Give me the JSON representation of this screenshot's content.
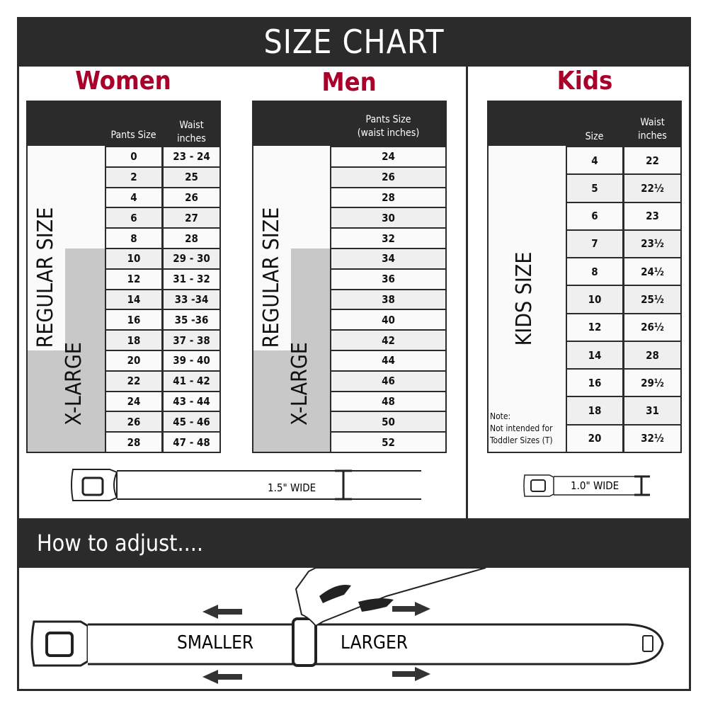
{
  "title": "SIZE CHART",
  "colors": {
    "accent": "#a8002a",
    "dark": "#2b2b2b",
    "xlarge_fill": "#c8c8c8",
    "row_alt": "#efefef"
  },
  "women": {
    "heading": "Women",
    "col_size": "Pants Size",
    "col_waist_1": "Waist",
    "col_waist_2": "inches",
    "regular_label": "REGULAR SIZE",
    "xlarge_label": "X-LARGE",
    "rows": [
      [
        "0",
        "23 - 24"
      ],
      [
        "2",
        "25"
      ],
      [
        "4",
        "26"
      ],
      [
        "6",
        "27"
      ],
      [
        "8",
        "28"
      ],
      [
        "10",
        "29 - 30"
      ],
      [
        "12",
        "31 - 32"
      ],
      [
        "14",
        "33 -34"
      ],
      [
        "16",
        "35 -36"
      ],
      [
        "18",
        "37 - 38"
      ],
      [
        "20",
        "39 - 40"
      ],
      [
        "22",
        "41 - 42"
      ],
      [
        "24",
        "43 - 44"
      ],
      [
        "26",
        "45 - 46"
      ],
      [
        "28",
        "47 - 48"
      ]
    ],
    "belt_width": "1.5\" WIDE"
  },
  "men": {
    "heading": "Men",
    "col_1": "Pants Size",
    "col_2": "(waist inches)",
    "regular_label": "REGULAR SIZE",
    "xlarge_label": "X-LARGE",
    "rows": [
      "24",
      "26",
      "28",
      "30",
      "32",
      "34",
      "36",
      "38",
      "40",
      "42",
      "44",
      "46",
      "48",
      "50",
      "52"
    ]
  },
  "kids": {
    "heading": "Kids",
    "col_size": "Size",
    "col_waist_1": "Waist",
    "col_waist_2": "inches",
    "label": "KIDS SIZE",
    "note_1": "Note:",
    "note_2": "Not intended for",
    "note_3": "Toddler Sizes (T)",
    "rows": [
      [
        "4",
        "22"
      ],
      [
        "5",
        "22½"
      ],
      [
        "6",
        "23"
      ],
      [
        "7",
        "23½"
      ],
      [
        "8",
        "24½"
      ],
      [
        "10",
        "25½"
      ],
      [
        "12",
        "26½"
      ],
      [
        "14",
        "28"
      ],
      [
        "16",
        "29½"
      ],
      [
        "18",
        "31"
      ],
      [
        "20",
        "32½"
      ]
    ],
    "belt_width": "1.0\" WIDE"
  },
  "adjust": {
    "heading": "How to adjust....",
    "smaller": "SMALLER",
    "larger": "LARGER"
  }
}
